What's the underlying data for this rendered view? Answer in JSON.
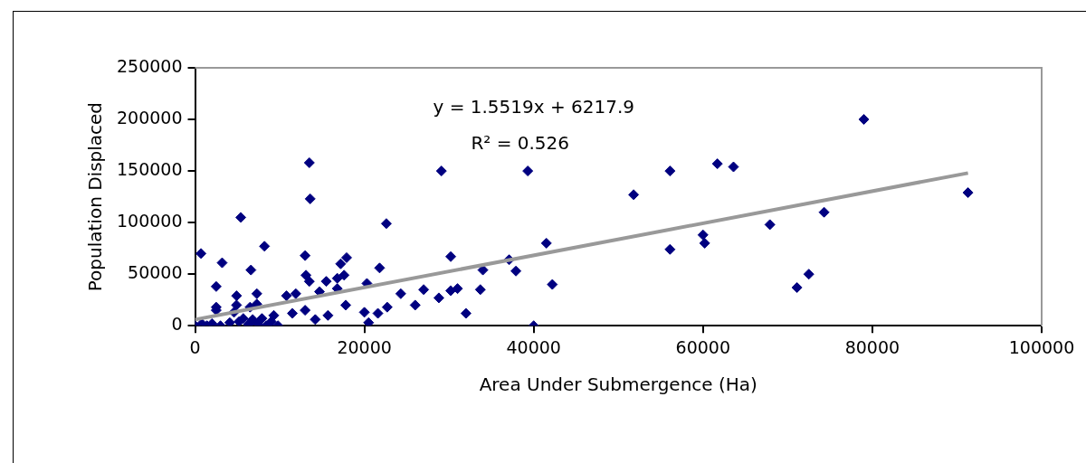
{
  "chart_data": {
    "type": "scatter",
    "xlabel": "Area Under Submergence (Ha)",
    "ylabel": "Population Displaced",
    "xlim": [
      0,
      100000
    ],
    "ylim": [
      0,
      250000
    ],
    "xticks": [
      0,
      20000,
      40000,
      60000,
      80000,
      100000
    ],
    "yticks": [
      0,
      50000,
      100000,
      150000,
      200000,
      250000
    ],
    "grid": false,
    "legend": false,
    "annotations": [
      "y = 1.5519x + 6217.9",
      "R² = 0.526"
    ],
    "series": [
      {
        "marker": "diamond",
        "color": "#000080",
        "x": [
          79000,
          91300,
          74300,
          72500,
          71100,
          67900,
          63600,
          61700,
          60000,
          60200,
          29100,
          39300,
          56100,
          51800,
          56100,
          41500,
          42200,
          30200,
          37100,
          37900,
          34000,
          33700,
          31000,
          30200,
          28800,
          27000,
          26000,
          24300,
          32000,
          40000,
          13500,
          13600,
          5400,
          22600,
          8200,
          700,
          3200,
          6600,
          13000,
          17900,
          17200,
          21800,
          2500,
          4900,
          7300,
          2500,
          4900,
          13100,
          13500,
          15500,
          16800,
          17600,
          10800,
          11900,
          14700,
          16800,
          17800,
          13000,
          14200,
          15700,
          11500,
          20300,
          20000,
          20500,
          21600,
          22700,
          9800,
          0,
          800,
          1400,
          2000,
          3000,
          4100,
          5200,
          6300,
          6800,
          7400,
          7900,
          8400,
          9000,
          9300,
          4600,
          2500,
          5700,
          7300,
          6500
        ],
        "values": [
          200000,
          129000,
          110000,
          50000,
          37000,
          98000,
          154000,
          157000,
          88000,
          80000,
          150000,
          150000,
          150000,
          127000,
          74000,
          80000,
          40000,
          67000,
          64000,
          53000,
          54000,
          35000,
          36000,
          34000,
          27000,
          35000,
          20000,
          31000,
          12000,
          0,
          158000,
          123000,
          105000,
          99000,
          77000,
          70000,
          61000,
          54000,
          68000,
          66000,
          60000,
          56000,
          38000,
          29000,
          31000,
          18000,
          20000,
          49000,
          43000,
          43000,
          46000,
          49000,
          29000,
          31000,
          33000,
          36000,
          20000,
          15000,
          6000,
          10000,
          12000,
          41000,
          13000,
          3000,
          12000,
          18000,
          0,
          0,
          2000,
          0,
          2000,
          0,
          3000,
          4000,
          1000,
          6000,
          2000,
          7000,
          0,
          4000,
          10000,
          13000,
          15000,
          7000,
          21000,
          18000
        ]
      },
      {
        "type": "line",
        "marker": "none",
        "color": "#999999",
        "x": [
          0,
          91300
        ],
        "values": [
          6000,
          148000
        ]
      }
    ]
  }
}
